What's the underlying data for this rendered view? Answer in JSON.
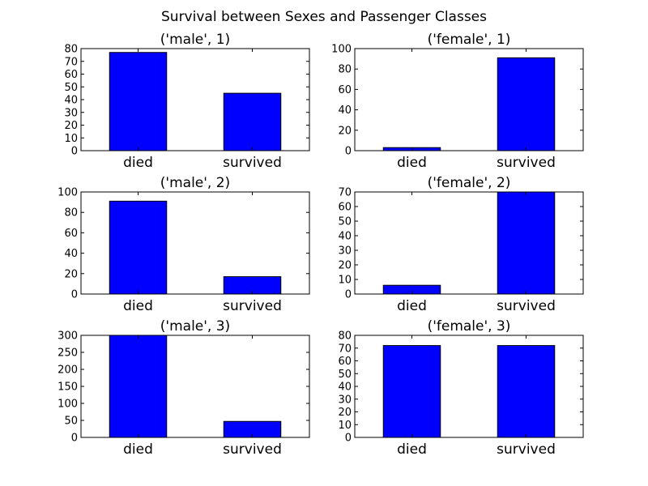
{
  "figure": {
    "title": "Survival between Sexes and Passenger Classes"
  },
  "chart_data": [
    {
      "type": "bar",
      "title": "('male', 1)",
      "categories": [
        "died",
        "survived"
      ],
      "values": [
        77,
        45
      ],
      "ylim": [
        0,
        80
      ],
      "yticks": [
        0,
        10,
        20,
        30,
        40,
        50,
        60,
        70,
        80
      ],
      "bar_color": "#0000ff",
      "grid": false,
      "xlabel": "",
      "ylabel": ""
    },
    {
      "type": "bar",
      "title": "('female', 1)",
      "categories": [
        "died",
        "survived"
      ],
      "values": [
        3,
        91
      ],
      "ylim": [
        0,
        100
      ],
      "yticks": [
        0,
        20,
        40,
        60,
        80,
        100
      ],
      "bar_color": "#0000ff",
      "grid": false,
      "xlabel": "",
      "ylabel": ""
    },
    {
      "type": "bar",
      "title": "('male', 2)",
      "categories": [
        "died",
        "survived"
      ],
      "values": [
        91,
        17
      ],
      "ylim": [
        0,
        100
      ],
      "yticks": [
        0,
        20,
        40,
        60,
        80,
        100
      ],
      "bar_color": "#0000ff",
      "grid": false,
      "xlabel": "",
      "ylabel": ""
    },
    {
      "type": "bar",
      "title": "('female', 2)",
      "categories": [
        "died",
        "survived"
      ],
      "values": [
        6,
        70
      ],
      "ylim": [
        0,
        70
      ],
      "yticks": [
        0,
        10,
        20,
        30,
        40,
        50,
        60,
        70
      ],
      "bar_color": "#0000ff",
      "grid": false,
      "xlabel": "",
      "ylabel": ""
    },
    {
      "type": "bar",
      "title": "('male', 3)",
      "categories": [
        "died",
        "survived"
      ],
      "values": [
        300,
        47
      ],
      "ylim": [
        0,
        300
      ],
      "yticks": [
        0,
        50,
        100,
        150,
        200,
        250,
        300
      ],
      "bar_color": "#0000ff",
      "grid": false,
      "xlabel": "",
      "ylabel": ""
    },
    {
      "type": "bar",
      "title": "('female', 3)",
      "categories": [
        "died",
        "survived"
      ],
      "values": [
        72,
        72
      ],
      "ylim": [
        0,
        80
      ],
      "yticks": [
        0,
        10,
        20,
        30,
        40,
        50,
        60,
        70,
        80
      ],
      "bar_color": "#0000ff",
      "grid": false,
      "xlabel": "",
      "ylabel": ""
    }
  ]
}
